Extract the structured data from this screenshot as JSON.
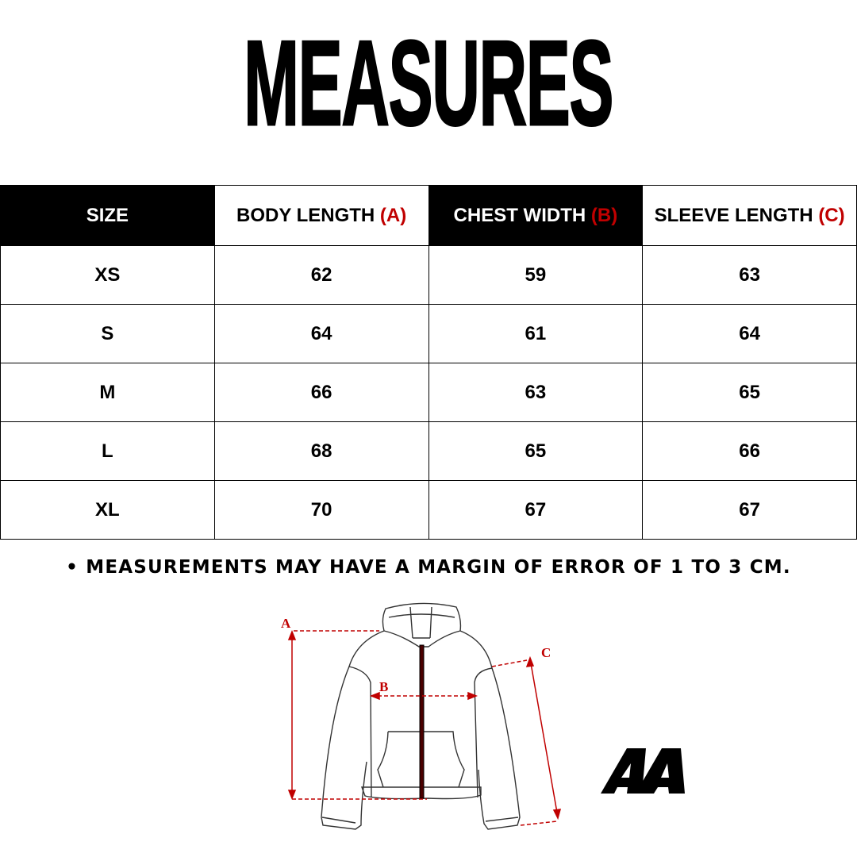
{
  "title": "MEASURES",
  "table": {
    "headers": [
      {
        "label": "SIZE",
        "letter": ""
      },
      {
        "label": "BODY LENGTH ",
        "letter": "(A)"
      },
      {
        "label": "CHEST WIDTH ",
        "letter": "(B)"
      },
      {
        "label": "SLEEVE LENGTH ",
        "letter": "(C)"
      }
    ],
    "rows": [
      [
        "XS",
        "62",
        "59",
        "63"
      ],
      [
        "S",
        "64",
        "61",
        "64"
      ],
      [
        "M",
        "66",
        "63",
        "65"
      ],
      [
        "L",
        "68",
        "65",
        "66"
      ],
      [
        "XL",
        "70",
        "67",
        "67"
      ]
    ]
  },
  "note": "• MEASUREMENTS MAY HAVE A MARGIN OF ERROR OF 1 TO 3 CM.",
  "diagram": {
    "label_a": "A",
    "label_b": "B",
    "label_c": "C"
  },
  "logo": "AA",
  "colors": {
    "accent": "#c00000",
    "header_dark": "#000000"
  }
}
